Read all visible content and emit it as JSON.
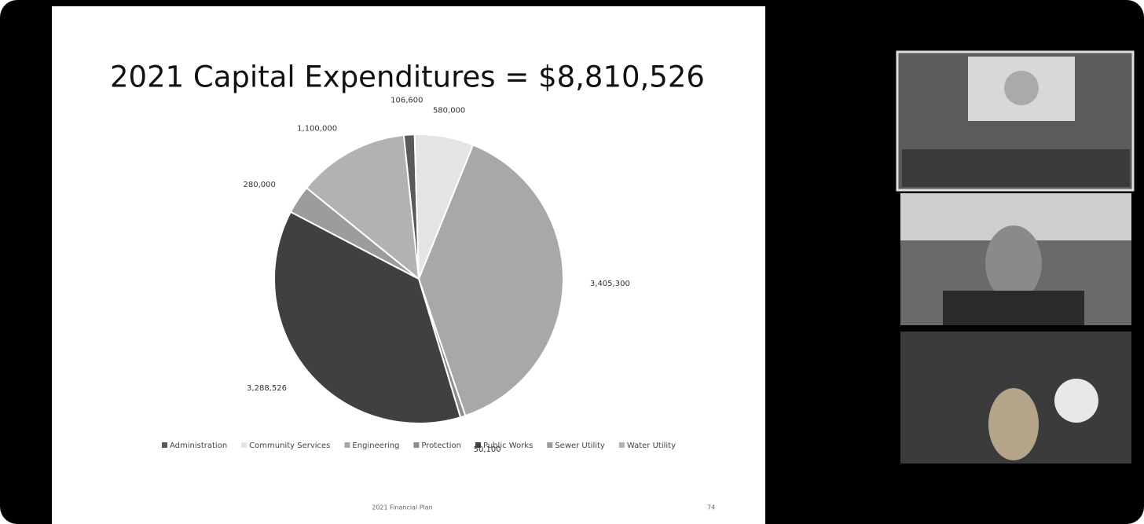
{
  "chart_data": {
    "type": "pie",
    "title": "2021 Capital Expenditures = $8,810,526",
    "categories": [
      "Administration",
      "Community Services",
      "Engineering",
      "Protection",
      "Public Works",
      "Sewer Utility",
      "Water Utility"
    ],
    "values": [
      106600,
      580000,
      3405300,
      50100,
      3288526,
      280000,
      1100000
    ],
    "value_labels": [
      "106,600",
      "580,000",
      "3,405,300",
      "50,100",
      "3,288,526",
      "280,000",
      "1,100,000"
    ],
    "colors": [
      "#5a5a5a",
      "#e4e4e4",
      "#a8a8a8",
      "#8c8c8c",
      "#404040",
      "#9c9c9c",
      "#b2b2b2"
    ],
    "legend": "bottom"
  },
  "footer": {
    "text": "2021 Financial Plan",
    "page": "74"
  }
}
